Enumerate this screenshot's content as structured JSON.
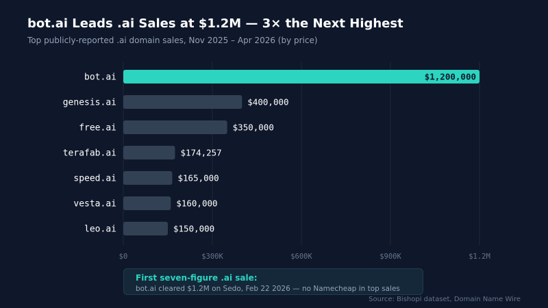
{
  "title": "bot.ai Leads .ai Sales at $1.2M — 3× the Next Highest",
  "subtitle": "Top publicly-reported .ai domain sales, Nov 2025 – Apr 2026 (by price)",
  "chart_data": {
    "type": "bar",
    "orientation": "horizontal",
    "categories": [
      "bot.ai",
      "genesis.ai",
      "free.ai",
      "terafab.ai",
      "speed.ai",
      "vesta.ai",
      "leo.ai"
    ],
    "values": [
      1200000,
      400000,
      350000,
      174257,
      165000,
      160000,
      150000
    ],
    "value_labels": [
      "$1,200,000",
      "$400,000",
      "$350,000",
      "$174,257",
      "$165,000",
      "$160,000",
      "$150,000"
    ],
    "xlim": [
      0,
      1200000
    ],
    "xticks": [
      0,
      300000,
      600000,
      900000,
      1200000
    ],
    "xtick_labels": [
      "$0",
      "$300K",
      "$600K",
      "$900K",
      "$1.2M"
    ],
    "highlight_index": 0,
    "grid": true
  },
  "colors": {
    "background": "#0f172a",
    "highlight_bar": "#2dd4bf",
    "bar": "#334155",
    "value_text": "#ffffff",
    "highlight_value_text": "#0f172a",
    "category_text": "#ffffff",
    "tick_text": "#64748b",
    "grid": "#1e293b"
  },
  "callout": {
    "title": "First seven-figure .ai sale:",
    "text": "bot.ai cleared $1.2M on Sedo, Feb 22 2026 — no Namecheap in top sales"
  },
  "source": "Source: Bishopi dataset, Domain Name Wire"
}
